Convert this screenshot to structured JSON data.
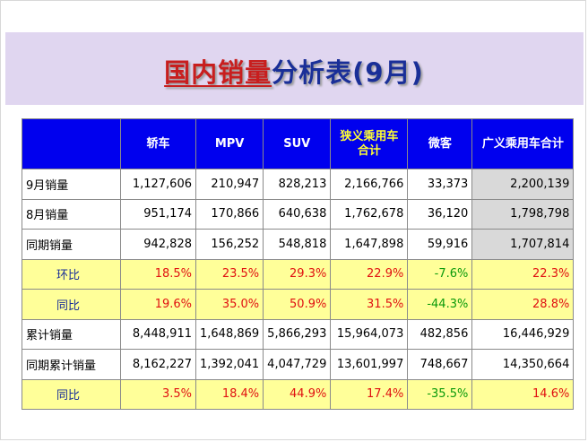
{
  "slide": {
    "title_part1": "国内销量",
    "title_part2": "分析表(9月)"
  },
  "colors": {
    "title_band": "#e0d6f0",
    "header_bg": "#0000ee",
    "header_text": "#ffffff",
    "header_highlight_text": "#ffff33",
    "ratio_row_bg": "#ffff99",
    "total_col_bg": "#d9d9d9",
    "positive": "#e01010",
    "negative": "#0a9a0a"
  },
  "table": {
    "headers": [
      "",
      "轿车",
      "MPV",
      "SUV",
      "狭义乘用车合计",
      "微客",
      "广义乘用车合计"
    ],
    "rows": [
      {
        "label": "9月销量",
        "cells": [
          "1,127,606",
          "210,947",
          "828,213",
          "2,166,766",
          "33,373",
          "2,200,139"
        ]
      },
      {
        "label": "8月销量",
        "cells": [
          "951,174",
          "170,866",
          "640,638",
          "1,762,678",
          "36,120",
          "1,798,798"
        ]
      },
      {
        "label": "同期销量",
        "cells": [
          "942,828",
          "156,252",
          "548,818",
          "1,647,898",
          "59,916",
          "1,707,814"
        ]
      },
      {
        "label": "环比",
        "cells": [
          "18.5%",
          "23.5%",
          "29.3%",
          "22.9%",
          "-7.6%",
          "22.3%"
        ]
      },
      {
        "label": "同比",
        "cells": [
          "19.6%",
          "35.0%",
          "50.9%",
          "31.5%",
          "-44.3%",
          "28.8%"
        ]
      },
      {
        "label": "累计销量",
        "cells": [
          "8,448,911",
          "1,648,869",
          "5,866,293",
          "15,964,073",
          "482,856",
          "16,446,929"
        ]
      },
      {
        "label": "同期累计销量",
        "cells": [
          "8,162,227",
          "1,392,041",
          "4,047,729",
          "13,601,997",
          "748,667",
          "14,350,664"
        ]
      },
      {
        "label": "同比",
        "cells": [
          "3.5%",
          "18.4%",
          "44.9%",
          "17.4%",
          "-35.5%",
          "14.6%"
        ]
      }
    ]
  }
}
